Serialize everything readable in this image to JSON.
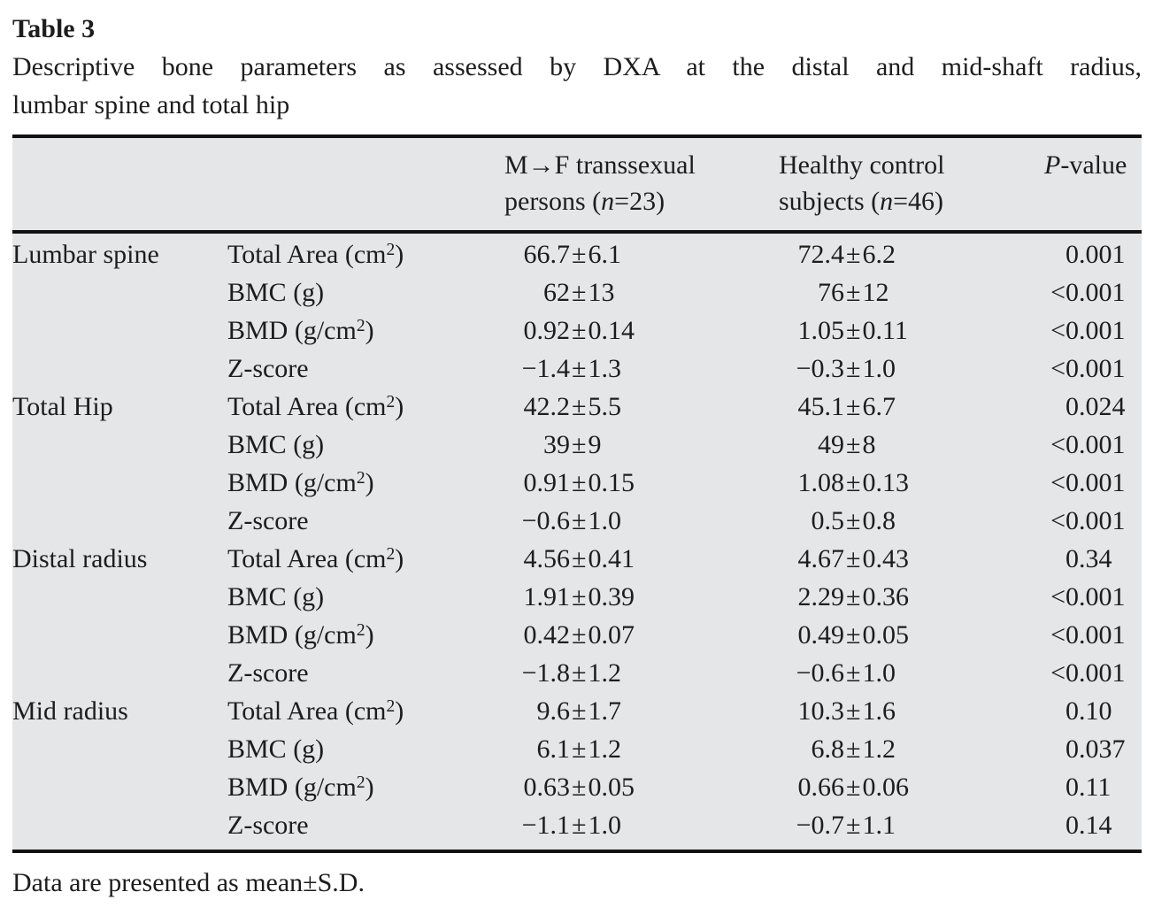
{
  "page": {
    "label": "Table 3",
    "caption_lines": [
      "Descriptive bone parameters as assessed by DXA at the distal and mid-shaft radius,",
      "lumbar spine and total hip"
    ],
    "footnote": "Data are presented as mean±S.D."
  },
  "table": {
    "columns": {
      "group1": {
        "line1": "M→F transsexual",
        "line2_pre": "persons (",
        "n_symbol": "n",
        "line2_post": "=23)"
      },
      "group2": {
        "line1": "Healthy control",
        "line2_pre": "subjects (",
        "n_symbol": "n",
        "line2_post": "=46)"
      },
      "pvalue": {
        "symbol": "P",
        "rest": "-value"
      }
    },
    "groups": [
      {
        "site": "Lumbar spine",
        "rows": [
          {
            "param": "Total Area (cm²)",
            "g1": "66.7±6.1",
            "g2": "72.4±6.2",
            "p": "0.001"
          },
          {
            "param": "BMC (g)",
            "g1": "62±13",
            "g2": "76±12",
            "p": "<0.001"
          },
          {
            "param": "BMD (g/cm²)",
            "g1": "0.92±0.14",
            "g2": "1.05±0.11",
            "p": "<0.001"
          },
          {
            "param": "Z-score",
            "g1": "−1.4±1.3",
            "g2": "−0.3±1.0",
            "p": "<0.001"
          }
        ]
      },
      {
        "site": "Total Hip",
        "rows": [
          {
            "param": "Total Area (cm²)",
            "g1": "42.2±5.5",
            "g2": "45.1±6.7",
            "p": "0.024"
          },
          {
            "param": "BMC (g)",
            "g1": "39±9",
            "g2": "49±8",
            "p": "<0.001"
          },
          {
            "param": "BMD (g/cm²)",
            "g1": "0.91±0.15",
            "g2": "1.08±0.13",
            "p": "<0.001"
          },
          {
            "param": "Z-score",
            "g1": "−0.6±1.0",
            "g2": "0.5±0.8",
            "p": "<0.001"
          }
        ]
      },
      {
        "site": "Distal radius",
        "rows": [
          {
            "param": "Total Area (cm²)",
            "g1": "4.56±0.41",
            "g2": "4.67±0.43",
            "p": "0.34"
          },
          {
            "param": "BMC (g)",
            "g1": "1.91±0.39",
            "g2": "2.29±0.36",
            "p": "<0.001"
          },
          {
            "param": "BMD (g/cm²)",
            "g1": "0.42±0.07",
            "g2": "0.49±0.05",
            "p": "<0.001"
          },
          {
            "param": "Z-score",
            "g1": "−1.8±1.2",
            "g2": "−0.6±1.0",
            "p": "<0.001"
          }
        ]
      },
      {
        "site": "Mid radius",
        "rows": [
          {
            "param": "Total Area (cm²)",
            "g1": "9.6±1.7",
            "g2": "10.3±1.6",
            "p": "0.10"
          },
          {
            "param": "BMC (g)",
            "g1": "6.1±1.2",
            "g2": "6.8±1.2",
            "p": "0.037"
          },
          {
            "param": "BMD (g/cm²)",
            "g1": "0.63±0.05",
            "g2": "0.66±0.06",
            "p": "0.11"
          },
          {
            "param": "Z-score",
            "g1": "−1.1±1.0",
            "g2": "−0.7±1.1",
            "p": "0.14"
          }
        ]
      }
    ]
  }
}
